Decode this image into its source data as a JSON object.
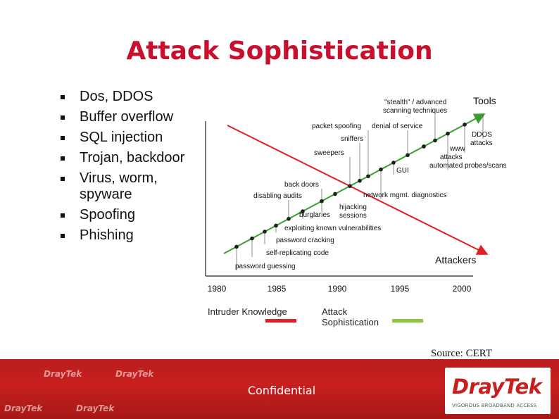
{
  "slide": {
    "title": "Attack Sophistication",
    "bullets": [
      "Dos, DDOS",
      "Buffer overflow",
      "SQL injection",
      "Trojan, backdoor",
      "Virus, worm, spyware",
      "Spoofing",
      "Phishing"
    ],
    "source": "Source: CERT"
  },
  "chart_data": {
    "type": "line",
    "x_ticks": [
      "1980",
      "1985",
      "1990",
      "1995",
      "2000"
    ],
    "xlim": [
      1980,
      2000
    ],
    "y_axis_visible": true,
    "grid": false,
    "series": [
      {
        "name": "Intruder Knowledge",
        "color": "#e31e24",
        "trend": "decreasing"
      },
      {
        "name": "Attack Sophistication",
        "color": "#8cc63f",
        "trend": "increasing"
      }
    ],
    "line_labels": {
      "tools": "Tools",
      "attackers": "Attackers"
    },
    "annotations": [
      "password guessing",
      "self-replicating code",
      "password cracking",
      "exploiting known vulnerabilities",
      "burglaries",
      "hijacking sessions",
      "disabling audits",
      "back doors",
      "network mgmt. diagnostics",
      "sweepers",
      "GUI",
      "sniffers",
      "automated probes/scans",
      "www attacks",
      "packet spoofing",
      "denial of service",
      "DDOS attacks",
      "\"stealth\" / advanced scanning techniques"
    ],
    "legend": [
      {
        "label": "Intruder Knowledge",
        "color": "#e31e24"
      },
      {
        "label": "Attack Sophistication",
        "color": "#8cc63f"
      }
    ]
  },
  "footer": {
    "confidential": "Confidential",
    "logo": "DrayTek",
    "logo_tagline": "VIGOROUS BROADBAND ACCESS",
    "watermark": "DrayTek"
  }
}
